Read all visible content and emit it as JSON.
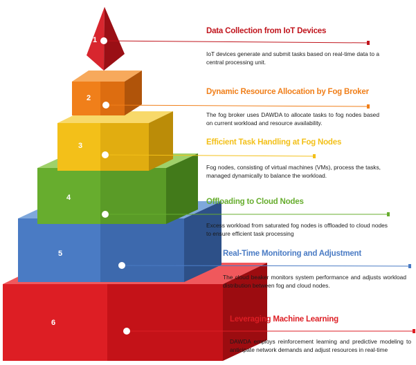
{
  "steps": [
    {
      "number": "1",
      "title": "Data Collection from IoT Devices",
      "description": "IoT devices generate and submit tasks based on real-time data to a central processing unit.",
      "color": "#c0141c"
    },
    {
      "number": "2",
      "title": "Dynamic Resource Allocation by Fog Broker",
      "description": "The fog broker uses DAWDA to allocate tasks to fog nodes based on current workload and resource availability.",
      "color": "#f07f1a"
    },
    {
      "number": "3",
      "title": "Efficient Task Handling at Fog Nodes",
      "description": "Fog nodes, consisting of virtual machines (VMs), process the tasks, managed dynamically to balance the workload.",
      "color": "#f3c019"
    },
    {
      "number": "4",
      "title": "Offloading to Cloud Nodes",
      "description": "Excess workload from saturated fog nodes is offloaded to cloud nodes to ensure efficient task processing",
      "color": "#67ad2e"
    },
    {
      "number": "5",
      "title": "Real-Time Monitoring and Adjustment",
      "description": "The cloud beaker monitors system performance and adjusts workload distribution between fog and cloud nodes.",
      "color": "#4a7bc4"
    },
    {
      "number": "6",
      "title": "Leveraging Machine Learning",
      "description": "DAWDA employs reinforcement learning and predictive modeling to anticipate network demands and adjust resources in real-time",
      "color": "#dd1e24"
    }
  ]
}
